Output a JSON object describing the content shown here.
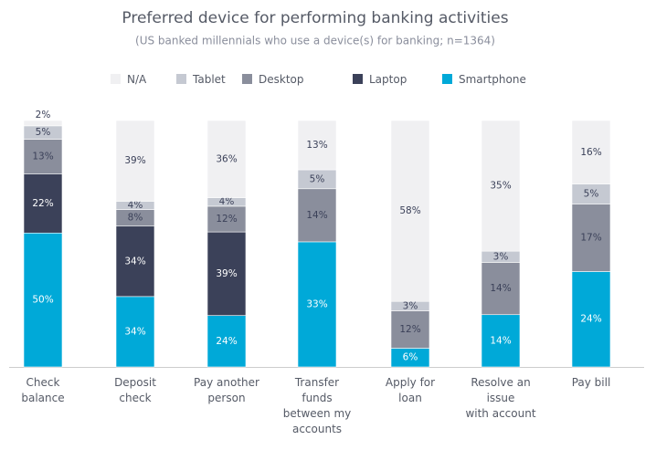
{
  "chart_data": {
    "type": "bar",
    "stacked": true,
    "percent_stacked": true,
    "title": "Preferred device for performing banking activities",
    "subtitle": "(US banked millennials who use a device(s) for banking; n=1364)",
    "categories": [
      "Check\nbalance",
      "Deposit\ncheck",
      "Pay another\nperson",
      "Transfer\nfunds\nbetween my\naccounts",
      "Apply for\nloan",
      "Resolve an\nissue\nwith account",
      "Pay bill"
    ],
    "series": [
      {
        "name": "Smartphone",
        "color": "#00a9d8",
        "values": [
          50,
          34,
          24,
          33,
          6,
          14,
          24
        ],
        "value_labels": [
          "50%",
          "34%",
          "24%",
          "33%",
          "6%",
          "14%",
          "24%"
        ]
      },
      {
        "name": "Laptop",
        "color": "#3b4159",
        "values": [
          22,
          34,
          39,
          null,
          null,
          null,
          null
        ],
        "value_labels": [
          "22%",
          "34%",
          "39%",
          null,
          null,
          null,
          null
        ]
      },
      {
        "name": "Desktop",
        "color": "#8a8e9c",
        "values": [
          13,
          8,
          12,
          14,
          12,
          14,
          17
        ],
        "value_labels": [
          "13%",
          "8%",
          "12%",
          "14%",
          "12%",
          "14%",
          "17%"
        ]
      },
      {
        "name": "Tablet",
        "color": "#c5c9d2",
        "values": [
          5,
          4,
          4,
          5,
          3,
          3,
          5
        ],
        "value_labels": [
          "5%",
          "4%",
          "4%",
          "5%",
          "3%",
          "3%",
          "5%"
        ]
      },
      {
        "name": "N/A",
        "color": "#f0f0f2",
        "values": [
          2,
          39,
          36,
          13,
          58,
          35,
          16
        ],
        "value_labels": [
          "2%",
          "39%",
          "36%",
          "13%",
          "58%",
          "35%",
          "16%"
        ]
      }
    ],
    "legend": "top"
  }
}
